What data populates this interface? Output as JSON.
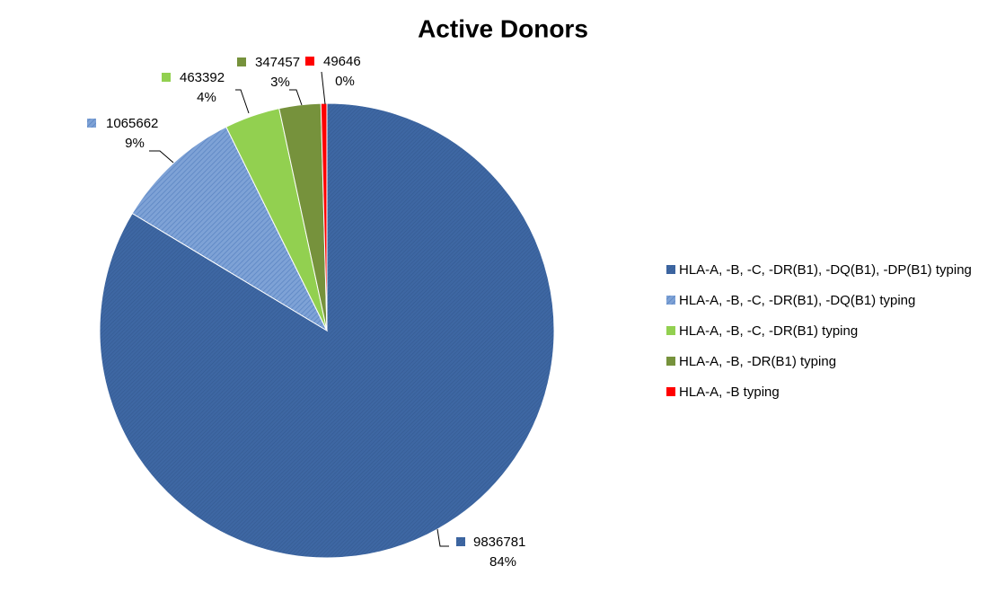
{
  "chart_data": {
    "type": "pie",
    "title": "Active Donors",
    "categories": [
      "HLA-A, -B, -C, -DR(B1), -DQ(B1), -DP(B1) typing",
      "HLA-A, -B, -C, -DR(B1), -DQ(B1) typing",
      "HLA-A, -B, -C, -DR(B1) typing",
      "HLA-A, -B, -DR(B1) typing",
      "HLA-A, -B typing"
    ],
    "values": [
      9836781,
      1065662,
      463392,
      347457,
      49646
    ],
    "percent_labels": [
      "84%",
      "9%",
      "4%",
      "3%",
      "0%"
    ],
    "colors": [
      "#3e67a3",
      "#6f96cf",
      "#92d050",
      "#76923c",
      "#ff0000"
    ],
    "legend": "right"
  }
}
